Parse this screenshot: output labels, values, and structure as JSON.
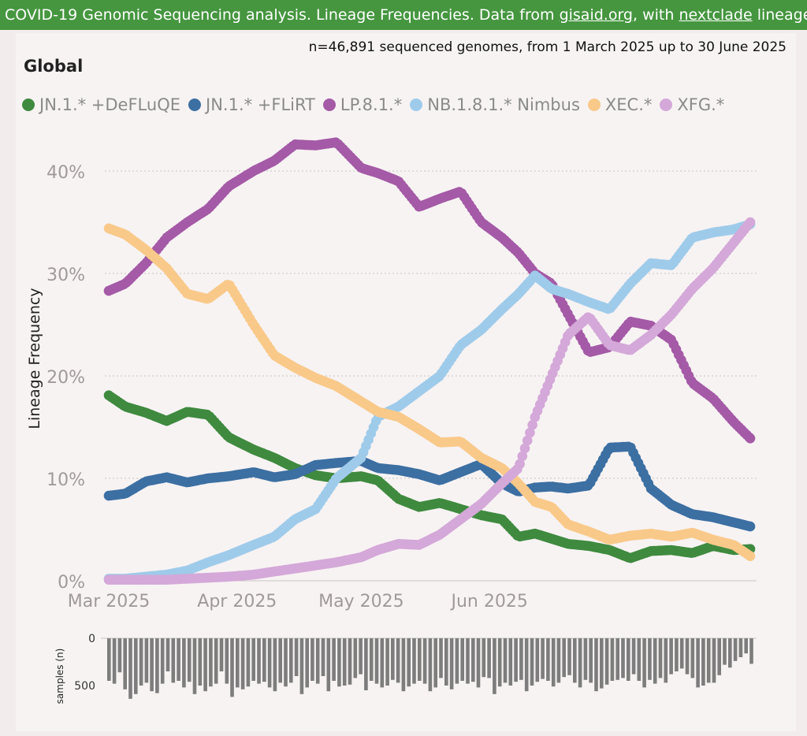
{
  "banner": {
    "part1": "COVID-19 Genomic Sequencing analysis. ",
    "part2": "Lineage Frequencies. Data from ",
    "link1": "gisaid.org",
    "part3": ", with ",
    "link2": "nextclade",
    "part4": " lineages. Source"
  },
  "subtitle": "n=46,891 sequenced genomes, from 1 March 2025 up to 30 June 2025",
  "region": "Global",
  "chart_data": [
    {
      "type": "scatter",
      "xlabel": "",
      "ylabel": "Lineage Frequency",
      "x_start": "2025-03-01",
      "x_end": "2025-06-30",
      "ylim": [
        0,
        45
      ],
      "yticks": [
        "0%",
        "10%",
        "20%",
        "30%",
        "40%"
      ],
      "xticks": [
        "Mar 2025",
        "Apr 2025",
        "May 2025",
        "Jun 2025"
      ],
      "grid": "horizontal dotted",
      "legend_position": "top-left",
      "series": [
        {
          "name": "JN.1.* +DeFLuQE",
          "color": "#3f8a3f",
          "points": [
            [
              "2025-03-01",
              18.1
            ],
            [
              "2025-03-05",
              17.0
            ],
            [
              "2025-03-10",
              16.4
            ],
            [
              "2025-03-15",
              15.6
            ],
            [
              "2025-03-20",
              16.5
            ],
            [
              "2025-03-25",
              16.2
            ],
            [
              "2025-03-30",
              14.0
            ],
            [
              "2025-04-05",
              12.8
            ],
            [
              "2025-04-10",
              12.0
            ],
            [
              "2025-04-15",
              11.0
            ],
            [
              "2025-04-20",
              10.3
            ],
            [
              "2025-04-25",
              10.0
            ],
            [
              "2025-05-01",
              10.2
            ],
            [
              "2025-05-05",
              9.8
            ],
            [
              "2025-05-10",
              8.0
            ],
            [
              "2025-05-15",
              7.2
            ],
            [
              "2025-05-20",
              7.6
            ],
            [
              "2025-05-25",
              7.0
            ],
            [
              "2025-05-30",
              6.4
            ],
            [
              "2025-06-04",
              6.0
            ],
            [
              "2025-06-08",
              4.3
            ],
            [
              "2025-06-12",
              4.6
            ],
            [
              "2025-06-16",
              4.1
            ],
            [
              "2025-06-20",
              3.6
            ],
            [
              "2025-06-25",
              3.4
            ],
            [
              "2025-06-30",
              3.0
            ],
            [
              "2025-07-05",
              2.2
            ],
            [
              "2025-07-10",
              2.9
            ],
            [
              "2025-07-15",
              3.0
            ],
            [
              "2025-07-20",
              2.7
            ],
            [
              "2025-07-25",
              3.4
            ],
            [
              "2025-07-30",
              3.0
            ],
            [
              "2025-08-03",
              3.1
            ]
          ]
        },
        {
          "name": "JN.1.* +FLiRT",
          "color": "#3c6fa2",
          "points": [
            [
              "2025-03-01",
              8.3
            ],
            [
              "2025-03-05",
              8.5
            ],
            [
              "2025-03-10",
              9.7
            ],
            [
              "2025-03-15",
              10.1
            ],
            [
              "2025-03-20",
              9.6
            ],
            [
              "2025-03-25",
              10.0
            ],
            [
              "2025-03-30",
              10.2
            ],
            [
              "2025-04-05",
              10.6
            ],
            [
              "2025-04-10",
              10.1
            ],
            [
              "2025-04-15",
              10.4
            ],
            [
              "2025-04-20",
              11.3
            ],
            [
              "2025-04-25",
              11.5
            ],
            [
              "2025-05-01",
              11.7
            ],
            [
              "2025-05-05",
              11.0
            ],
            [
              "2025-05-10",
              10.8
            ],
            [
              "2025-05-15",
              10.4
            ],
            [
              "2025-05-20",
              9.8
            ],
            [
              "2025-05-25",
              10.6
            ],
            [
              "2025-05-30",
              11.4
            ],
            [
              "2025-06-04",
              9.5
            ],
            [
              "2025-06-08",
              8.7
            ],
            [
              "2025-06-12",
              9.1
            ],
            [
              "2025-06-16",
              9.2
            ],
            [
              "2025-06-20",
              9.0
            ],
            [
              "2025-06-25",
              9.3
            ],
            [
              "2025-06-30",
              13.0
            ],
            [
              "2025-07-05",
              13.1
            ],
            [
              "2025-07-10",
              9.0
            ],
            [
              "2025-07-15",
              7.4
            ],
            [
              "2025-07-20",
              6.5
            ],
            [
              "2025-07-25",
              6.2
            ],
            [
              "2025-07-30",
              5.7
            ],
            [
              "2025-08-03",
              5.3
            ]
          ]
        },
        {
          "name": "LP.8.1.*",
          "color": "#a45aa6",
          "points": [
            [
              "2025-03-01",
              28.3
            ],
            [
              "2025-03-05",
              29.0
            ],
            [
              "2025-03-10",
              31.0
            ],
            [
              "2025-03-15",
              33.5
            ],
            [
              "2025-03-20",
              35.0
            ],
            [
              "2025-03-25",
              36.3
            ],
            [
              "2025-03-30",
              38.5
            ],
            [
              "2025-04-05",
              40.0
            ],
            [
              "2025-04-10",
              41.0
            ],
            [
              "2025-04-15",
              42.6
            ],
            [
              "2025-04-20",
              42.5
            ],
            [
              "2025-04-25",
              42.8
            ],
            [
              "2025-05-01",
              40.3
            ],
            [
              "2025-05-05",
              39.8
            ],
            [
              "2025-05-10",
              39.0
            ],
            [
              "2025-05-15",
              36.5
            ],
            [
              "2025-05-20",
              37.3
            ],
            [
              "2025-05-25",
              38.0
            ],
            [
              "2025-05-30",
              35.0
            ],
            [
              "2025-06-04",
              33.5
            ],
            [
              "2025-06-08",
              32.0
            ],
            [
              "2025-06-12",
              30.0
            ],
            [
              "2025-06-16",
              29.0
            ],
            [
              "2025-06-20",
              26.0
            ],
            [
              "2025-06-25",
              22.3
            ],
            [
              "2025-06-30",
              22.8
            ],
            [
              "2025-07-05",
              25.3
            ],
            [
              "2025-07-10",
              24.9
            ],
            [
              "2025-07-15",
              23.5
            ],
            [
              "2025-07-20",
              19.3
            ],
            [
              "2025-07-25",
              17.8
            ],
            [
              "2025-07-30",
              15.5
            ],
            [
              "2025-08-03",
              13.9
            ]
          ]
        },
        {
          "name": "NB.1.8.1.* Nimbus",
          "color": "#9fcbea",
          "points": [
            [
              "2025-03-01",
              0.2
            ],
            [
              "2025-03-05",
              0.2
            ],
            [
              "2025-03-10",
              0.4
            ],
            [
              "2025-03-15",
              0.6
            ],
            [
              "2025-03-20",
              1.0
            ],
            [
              "2025-03-25",
              1.8
            ],
            [
              "2025-03-30",
              2.5
            ],
            [
              "2025-04-05",
              3.5
            ],
            [
              "2025-04-10",
              4.3
            ],
            [
              "2025-04-15",
              6.0
            ],
            [
              "2025-04-20",
              7.0
            ],
            [
              "2025-04-25",
              10.0
            ],
            [
              "2025-05-01",
              12.0
            ],
            [
              "2025-05-05",
              16.0
            ],
            [
              "2025-05-10",
              17.0
            ],
            [
              "2025-05-15",
              18.5
            ],
            [
              "2025-05-20",
              20.0
            ],
            [
              "2025-05-25",
              23.0
            ],
            [
              "2025-05-30",
              24.5
            ],
            [
              "2025-06-04",
              26.5
            ],
            [
              "2025-06-08",
              28.0
            ],
            [
              "2025-06-12",
              29.8
            ],
            [
              "2025-06-16",
              28.5
            ],
            [
              "2025-06-20",
              28.0
            ],
            [
              "2025-06-25",
              27.2
            ],
            [
              "2025-06-30",
              26.5
            ],
            [
              "2025-07-05",
              29.0
            ],
            [
              "2025-07-10",
              31.0
            ],
            [
              "2025-07-15",
              30.8
            ],
            [
              "2025-07-20",
              33.5
            ],
            [
              "2025-07-25",
              34.0
            ],
            [
              "2025-07-30",
              34.3
            ],
            [
              "2025-08-03",
              34.8
            ]
          ]
        },
        {
          "name": "XEC.*",
          "color": "#f9c98a",
          "points": [
            [
              "2025-03-01",
              34.4
            ],
            [
              "2025-03-05",
              33.8
            ],
            [
              "2025-03-10",
              32.3
            ],
            [
              "2025-03-15",
              30.5
            ],
            [
              "2025-03-20",
              28.0
            ],
            [
              "2025-03-25",
              27.5
            ],
            [
              "2025-03-30",
              29.0
            ],
            [
              "2025-04-05",
              25.0
            ],
            [
              "2025-04-10",
              22.0
            ],
            [
              "2025-04-15",
              20.8
            ],
            [
              "2025-04-20",
              19.8
            ],
            [
              "2025-04-25",
              19.0
            ],
            [
              "2025-05-01",
              17.5
            ],
            [
              "2025-05-05",
              16.5
            ],
            [
              "2025-05-10",
              16.0
            ],
            [
              "2025-05-15",
              14.8
            ],
            [
              "2025-05-20",
              13.5
            ],
            [
              "2025-05-25",
              13.6
            ],
            [
              "2025-05-30",
              12.0
            ],
            [
              "2025-06-04",
              11.0
            ],
            [
              "2025-06-08",
              9.5
            ],
            [
              "2025-06-12",
              7.7
            ],
            [
              "2025-06-16",
              7.2
            ],
            [
              "2025-06-20",
              5.5
            ],
            [
              "2025-06-25",
              4.8
            ],
            [
              "2025-06-30",
              4.0
            ],
            [
              "2025-07-05",
              4.4
            ],
            [
              "2025-07-10",
              4.6
            ],
            [
              "2025-07-15",
              4.3
            ],
            [
              "2025-07-20",
              4.7
            ],
            [
              "2025-07-25",
              4.0
            ],
            [
              "2025-07-30",
              3.5
            ],
            [
              "2025-08-03",
              2.4
            ]
          ]
        },
        {
          "name": "XFG.*",
          "color": "#d4a8d8",
          "points": [
            [
              "2025-03-01",
              0.1
            ],
            [
              "2025-03-05",
              0.1
            ],
            [
              "2025-03-10",
              0.1
            ],
            [
              "2025-03-15",
              0.1
            ],
            [
              "2025-03-20",
              0.2
            ],
            [
              "2025-03-25",
              0.3
            ],
            [
              "2025-03-30",
              0.4
            ],
            [
              "2025-04-05",
              0.6
            ],
            [
              "2025-04-10",
              0.9
            ],
            [
              "2025-04-15",
              1.2
            ],
            [
              "2025-04-20",
              1.5
            ],
            [
              "2025-04-25",
              1.8
            ],
            [
              "2025-05-01",
              2.3
            ],
            [
              "2025-05-05",
              3.0
            ],
            [
              "2025-05-10",
              3.6
            ],
            [
              "2025-05-15",
              3.5
            ],
            [
              "2025-05-20",
              4.5
            ],
            [
              "2025-05-25",
              6.0
            ],
            [
              "2025-05-30",
              7.5
            ],
            [
              "2025-06-04",
              9.5
            ],
            [
              "2025-06-08",
              11.0
            ],
            [
              "2025-06-12",
              16.0
            ],
            [
              "2025-06-16",
              20.0
            ],
            [
              "2025-06-20",
              24.0
            ],
            [
              "2025-06-25",
              25.8
            ],
            [
              "2025-06-30",
              23.0
            ],
            [
              "2025-07-05",
              22.5
            ],
            [
              "2025-07-10",
              24.0
            ],
            [
              "2025-07-15",
              26.0
            ],
            [
              "2025-07-20",
              28.5
            ],
            [
              "2025-07-25",
              30.5
            ],
            [
              "2025-07-30",
              33.0
            ],
            [
              "2025-08-03",
              35.0
            ]
          ]
        }
      ]
    },
    {
      "type": "bar",
      "ylabel": "samples (n)",
      "yticks": [
        "0",
        "500"
      ],
      "ylim": [
        0,
        700
      ],
      "bar_color": "#7d7d7d",
      "values": [
        450,
        480,
        360,
        540,
        640,
        590,
        500,
        470,
        560,
        580,
        480,
        350,
        470,
        450,
        520,
        460,
        590,
        500,
        560,
        510,
        480,
        350,
        480,
        620,
        520,
        540,
        510,
        450,
        480,
        460,
        520,
        560,
        470,
        510,
        470,
        400,
        590,
        520,
        450,
        480,
        400,
        560,
        450,
        510,
        500,
        490,
        420,
        380,
        550,
        450,
        480,
        520,
        500,
        440,
        470,
        560,
        510,
        480,
        450,
        480,
        560,
        520,
        420,
        500,
        540,
        480,
        450,
        480,
        460,
        520,
        410,
        420,
        590,
        510,
        470,
        500,
        460,
        440,
        560,
        500,
        460,
        430,
        450,
        510,
        470,
        410,
        390,
        470,
        520,
        440,
        470,
        560,
        530,
        490,
        450,
        440,
        420,
        450,
        380,
        450,
        520,
        440,
        480,
        420,
        470,
        380,
        350,
        320,
        380,
        420,
        520,
        500,
        470,
        470,
        390,
        280,
        310,
        240,
        200,
        160,
        270
      ]
    }
  ]
}
